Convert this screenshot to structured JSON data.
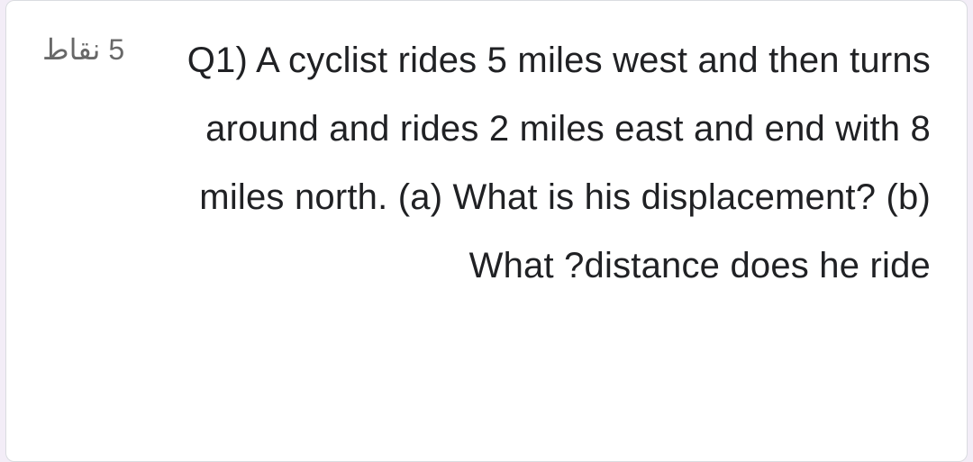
{
  "card": {
    "points_label": "5 نقاط",
    "question_text": "Q1) A cyclist rides 5 miles west and then turns around and rides 2 miles east and end with 8 miles north. (a) What is his displacement? (b) What ?distance does he ride",
    "background_color": "#ffffff",
    "border_color": "#dadce0",
    "text_color": "#202124",
    "points_color": "#686868",
    "page_background": "#f3edf7",
    "question_fontsize": 40,
    "points_fontsize": 32
  }
}
